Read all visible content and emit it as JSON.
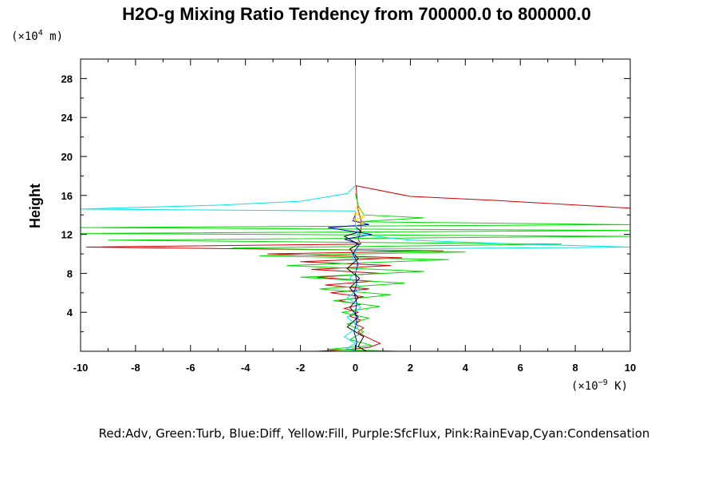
{
  "chart_data": {
    "type": "line",
    "title": "H2O-g Mixing Ratio Tendency from 700000.0 to 800000.0",
    "ylabel": "Height",
    "y_units_prefix": "(×10",
    "y_units_exp": "4",
    "y_units_suffix": " m)",
    "x_units_prefix": "(×10",
    "x_units_exp": "−9",
    "x_units_suffix": " K)",
    "xlim": [
      -10,
      10
    ],
    "ylim": [
      0,
      30
    ],
    "x_ticks": [
      "-10",
      "-8",
      "-6",
      "-4",
      "-2",
      "0",
      "2",
      "4",
      "6",
      "8",
      "10"
    ],
    "y_ticks": [
      "4",
      "8",
      "12",
      "16",
      "20",
      "24",
      "28"
    ],
    "grid": false,
    "legend_text": "Red:Adv, Green:Turb, Blue:Diff, Yellow:Fill, Purple:SfcFlux, Pink:RainEvap,Cyan:Condensation",
    "legend_placement": "bottom",
    "series": [
      {
        "name": "Adv",
        "color": "#d00000",
        "points": [
          [
            -1.4,
            0.0
          ],
          [
            -0.2,
            0.2
          ],
          [
            0.5,
            0.4
          ],
          [
            0.9,
            0.8
          ],
          [
            0.6,
            1.2
          ],
          [
            0.3,
            1.6
          ],
          [
            0.1,
            2.0
          ],
          [
            0.3,
            2.4
          ],
          [
            0.0,
            2.8
          ],
          [
            0.2,
            3.2
          ],
          [
            -0.2,
            3.6
          ],
          [
            0.1,
            4.0
          ],
          [
            -0.4,
            4.4
          ],
          [
            0.2,
            4.8
          ],
          [
            -0.6,
            5.2
          ],
          [
            0.3,
            5.6
          ],
          [
            -0.9,
            6.0
          ],
          [
            0.5,
            6.4
          ],
          [
            -1.1,
            6.8
          ],
          [
            0.6,
            7.2
          ],
          [
            -1.4,
            7.6
          ],
          [
            0.9,
            8.0
          ],
          [
            -1.6,
            8.4
          ],
          [
            1.3,
            8.8
          ],
          [
            -2.0,
            9.2
          ],
          [
            1.7,
            9.6
          ],
          [
            -3.2,
            10.0
          ],
          [
            3.2,
            10.3
          ],
          [
            -9.8,
            10.7
          ],
          [
            0.2,
            11.0
          ],
          [
            0.1,
            11.5
          ],
          [
            0.2,
            12.5
          ],
          [
            0.2,
            13.5
          ],
          [
            0.1,
            14.5
          ],
          [
            0.05,
            16.0
          ],
          [
            0.02,
            17.0
          ],
          [
            2.0,
            15.9
          ],
          [
            5.0,
            15.5
          ],
          [
            7.5,
            15.1
          ],
          [
            10.0,
            14.7
          ]
        ]
      },
      {
        "name": "Turb",
        "color": "#00dd00",
        "points": [
          [
            1.6,
            0.0
          ],
          [
            -1.0,
            0.2
          ],
          [
            0.6,
            0.6
          ],
          [
            -0.2,
            1.2
          ],
          [
            0.3,
            2.0
          ],
          [
            -0.3,
            2.8
          ],
          [
            0.5,
            3.4
          ],
          [
            -0.5,
            4.0
          ],
          [
            0.9,
            4.6
          ],
          [
            -0.8,
            5.2
          ],
          [
            1.3,
            5.8
          ],
          [
            -1.3,
            6.4
          ],
          [
            1.8,
            7.0
          ],
          [
            -2.0,
            7.6
          ],
          [
            2.5,
            8.2
          ],
          [
            -2.5,
            8.8
          ],
          [
            3.4,
            9.4
          ],
          [
            -3.5,
            9.8
          ],
          [
            4.0,
            10.2
          ],
          [
            -4.5,
            10.6
          ],
          [
            7.5,
            11.0
          ],
          [
            -9.0,
            11.4
          ],
          [
            10.0,
            11.8
          ],
          [
            -10.0,
            12.1
          ],
          [
            10.0,
            12.4
          ],
          [
            -10.0,
            12.7
          ],
          [
            10.0,
            13.0
          ],
          [
            0.1,
            13.3
          ],
          [
            2.5,
            13.7
          ],
          [
            0.3,
            14.0
          ],
          [
            0.1,
            15.0
          ],
          [
            0.0,
            16.2
          ]
        ]
      },
      {
        "name": "Diff",
        "color": "#0000cc",
        "points": [
          [
            0.0,
            0.0
          ],
          [
            0.05,
            1.0
          ],
          [
            -0.05,
            2.0
          ],
          [
            0.05,
            3.0
          ],
          [
            0.0,
            4.0
          ],
          [
            0.05,
            5.0
          ],
          [
            -0.05,
            6.0
          ],
          [
            0.05,
            7.0
          ],
          [
            0.0,
            8.0
          ],
          [
            0.1,
            9.0
          ],
          [
            -0.1,
            10.0
          ],
          [
            0.15,
            11.0
          ],
          [
            -0.4,
            11.5
          ],
          [
            0.6,
            12.0
          ],
          [
            -1.0,
            12.7
          ],
          [
            0.5,
            13.0
          ],
          [
            -0.1,
            13.4
          ],
          [
            0.0,
            14.0
          ]
        ]
      },
      {
        "name": "Fill",
        "color": "#ffd800",
        "points": [
          [
            0.0,
            12.9
          ],
          [
            0.3,
            13.2
          ],
          [
            -0.1,
            13.5
          ],
          [
            0.35,
            13.8
          ],
          [
            -0.05,
            14.1
          ],
          [
            0.25,
            14.4
          ],
          [
            0.0,
            14.7
          ],
          [
            0.1,
            15.0
          ]
        ]
      },
      {
        "name": "SfcFlux",
        "color": "#000000",
        "points": [
          [
            0.4,
            0.0
          ],
          [
            0.1,
            0.5
          ],
          [
            0.3,
            1.5
          ],
          [
            -0.3,
            2.5
          ],
          [
            0.1,
            3.5
          ],
          [
            -0.2,
            4.5
          ],
          [
            0.1,
            5.5
          ],
          [
            -0.2,
            6.5
          ],
          [
            0.15,
            7.5
          ],
          [
            -0.3,
            8.5
          ],
          [
            0.1,
            9.5
          ],
          [
            -0.2,
            10.5
          ],
          [
            0.1,
            11.0
          ],
          [
            -0.4,
            11.8
          ],
          [
            0.2,
            12.3
          ],
          [
            0.0,
            12.8
          ]
        ]
      },
      {
        "name": "Condensation",
        "color": "#00e5e5",
        "points": [
          [
            0.0,
            30.0
          ],
          [
            0.0,
            20.0
          ],
          [
            0.0,
            17.0
          ],
          [
            -0.3,
            16.2
          ],
          [
            -2.0,
            15.4
          ],
          [
            -5.0,
            15.0
          ],
          [
            -10.0,
            14.6
          ],
          [
            0.0,
            14.4
          ],
          [
            0.0,
            13.0
          ],
          [
            0.1,
            12.0
          ],
          [
            2.0,
            11.4
          ],
          [
            6.0,
            11.0
          ],
          [
            10.0,
            10.7
          ],
          [
            0.05,
            10.5
          ],
          [
            -0.1,
            9.5
          ],
          [
            0.1,
            8.5
          ],
          [
            -0.2,
            7.5
          ],
          [
            0.2,
            6.5
          ],
          [
            -0.3,
            5.5
          ],
          [
            0.2,
            4.5
          ],
          [
            -0.3,
            3.5
          ],
          [
            0.1,
            2.5
          ],
          [
            -0.4,
            1.5
          ],
          [
            0.0,
            0.8
          ],
          [
            -0.3,
            0.3
          ],
          [
            0.0,
            0.0
          ]
        ]
      }
    ]
  }
}
